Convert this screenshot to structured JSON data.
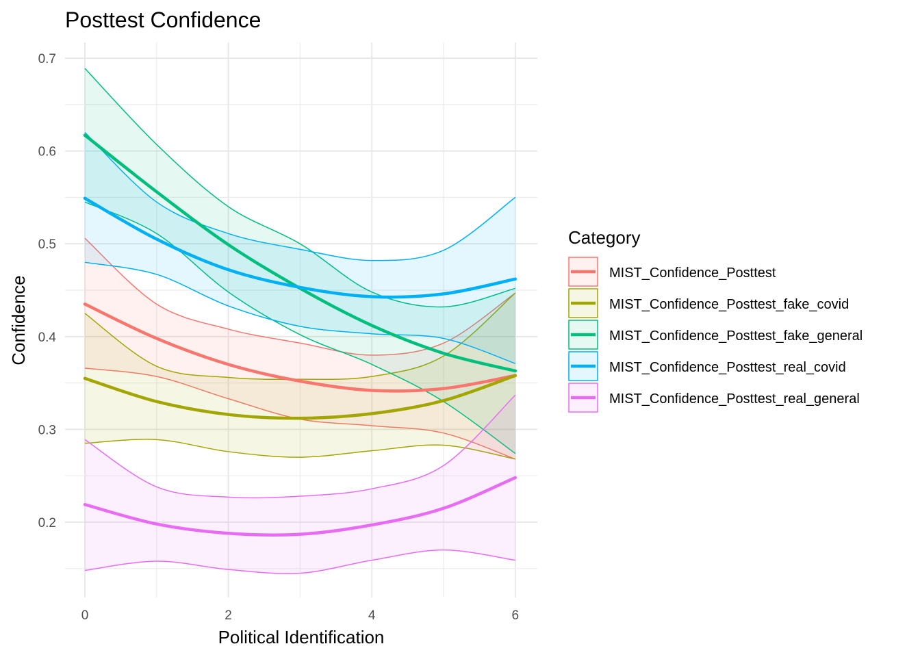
{
  "chart_data": {
    "type": "line",
    "title": "Posttest Confidence",
    "xlabel": "Political Identification",
    "ylabel": "Confidence",
    "xlim": [
      -0.2,
      6.3
    ],
    "ylim": [
      0.127,
      0.71
    ],
    "x_ticks": [
      0,
      2,
      4,
      6
    ],
    "x_tick_labels": [
      "0",
      "2",
      "4",
      "6"
    ],
    "y_ticks": [
      0.2,
      0.3,
      0.4,
      0.5,
      0.6,
      0.7
    ],
    "y_tick_labels": [
      "0.2",
      "0.3",
      "0.4",
      "0.5",
      "0.6",
      "0.7"
    ],
    "grid": true,
    "legend": {
      "title": "Category",
      "position": "right"
    },
    "x": [
      0,
      1,
      2,
      3,
      4,
      5,
      6
    ],
    "series": [
      {
        "name": "MIST_Confidence_Posttest",
        "color": "#F8766D",
        "values": [
          0.435,
          0.398,
          0.37,
          0.352,
          0.342,
          0.344,
          0.358
        ],
        "lower": [
          0.366,
          0.357,
          0.333,
          0.311,
          0.304,
          0.296,
          0.268
        ],
        "upper": [
          0.506,
          0.435,
          0.408,
          0.393,
          0.38,
          0.393,
          0.447
        ]
      },
      {
        "name": "MIST_Confidence_Posttest_fake_covid",
        "color": "#A3A500",
        "values": [
          0.355,
          0.33,
          0.316,
          0.312,
          0.317,
          0.331,
          0.358
        ],
        "lower": [
          0.285,
          0.289,
          0.276,
          0.27,
          0.277,
          0.283,
          0.268
        ],
        "upper": [
          0.425,
          0.368,
          0.356,
          0.354,
          0.357,
          0.379,
          0.447
        ]
      },
      {
        "name": "MIST_Confidence_Posttest_fake_general",
        "color": "#00BF7D",
        "values": [
          0.617,
          0.556,
          0.499,
          0.452,
          0.412,
          0.382,
          0.363
        ],
        "lower": [
          0.545,
          0.511,
          0.448,
          0.402,
          0.37,
          0.33,
          0.274
        ],
        "upper": [
          0.689,
          0.607,
          0.54,
          0.5,
          0.448,
          0.432,
          0.452
        ]
      },
      {
        "name": "MIST_Confidence_Posttest_real_covid",
        "color": "#00B0F6",
        "values": [
          0.549,
          0.505,
          0.472,
          0.453,
          0.443,
          0.446,
          0.462
        ],
        "lower": [
          0.48,
          0.467,
          0.433,
          0.411,
          0.403,
          0.398,
          0.371
        ],
        "upper": [
          0.62,
          0.545,
          0.511,
          0.494,
          0.482,
          0.493,
          0.55
        ]
      },
      {
        "name": "MIST_Confidence_Posttest_real_general",
        "color": "#E76BF3",
        "values": [
          0.219,
          0.198,
          0.188,
          0.187,
          0.197,
          0.215,
          0.248
        ],
        "lower": [
          0.148,
          0.158,
          0.149,
          0.145,
          0.159,
          0.17,
          0.159
        ],
        "upper": [
          0.289,
          0.238,
          0.227,
          0.228,
          0.236,
          0.261,
          0.337
        ]
      }
    ]
  }
}
